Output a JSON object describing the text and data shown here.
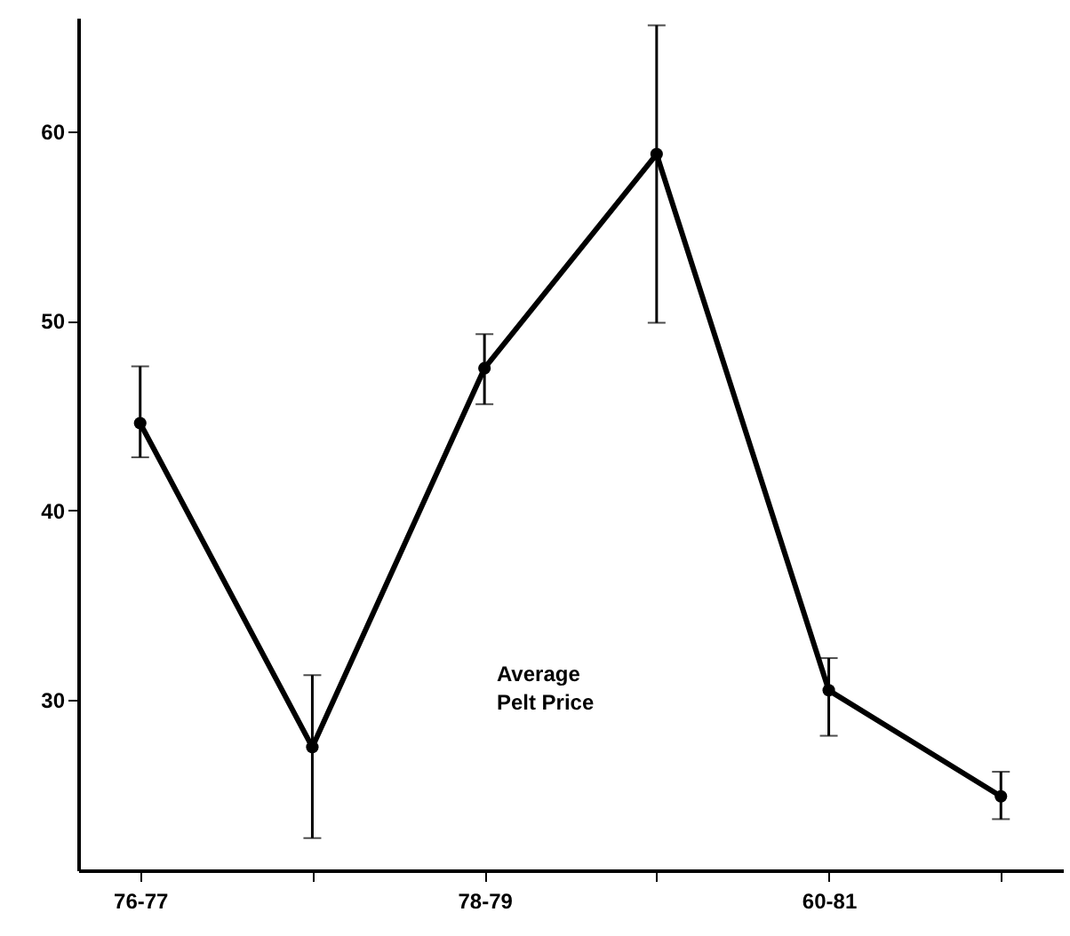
{
  "chart_data": {
    "type": "line",
    "categories": [
      "76-77",
      null,
      "78-79",
      null,
      "60-81",
      null
    ],
    "series": [
      {
        "color": "#000000",
        "values": [
          44.6,
          27.5,
          47.5,
          58.8,
          30.5,
          24.9
        ],
        "errors": [
          [
            42.8,
            47.6
          ],
          [
            22.7,
            31.3
          ],
          [
            45.6,
            49.3
          ],
          [
            49.9,
            65.6
          ],
          [
            28.1,
            32.2
          ],
          [
            23.7,
            26.2
          ]
        ]
      }
    ],
    "ylim": [
      21,
      66
    ],
    "yticks": [
      30,
      40,
      50,
      60
    ],
    "marker": "circle",
    "line_style": "solid",
    "grid": false,
    "annotations": [
      "Average\nPelt Price"
    ]
  }
}
